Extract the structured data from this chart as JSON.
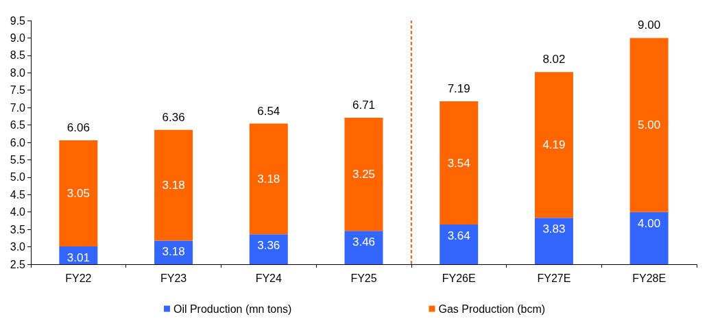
{
  "chart_data": {
    "type": "bar",
    "stacked": true,
    "categories": [
      "FY22",
      "FY23",
      "FY24",
      "FY25",
      "FY26E",
      "FY27E",
      "FY28E"
    ],
    "series": [
      {
        "name": "Oil Production (mn tons)",
        "color": "#3366ff",
        "values": [
          3.01,
          3.18,
          3.36,
          3.46,
          3.64,
          3.83,
          4.0
        ],
        "value_labels": [
          "3.01",
          "3.18",
          "3.36",
          "3.46",
          "3.64",
          "3.83",
          "4.00"
        ]
      },
      {
        "name": "Gas Production (bcm)",
        "color": "#ff6600",
        "values": [
          3.05,
          3.18,
          3.18,
          3.25,
          3.54,
          4.19,
          5.0
        ],
        "value_labels": [
          "3.05",
          "3.18",
          "3.18",
          "3.25",
          "3.54",
          "4.19",
          "5.00"
        ]
      }
    ],
    "totals": [
      "6.06",
      "6.36",
      "6.54",
      "6.71",
      "7.19",
      "8.02",
      "9.00"
    ],
    "ylim": [
      2.5,
      9.5
    ],
    "yticks": [
      2.5,
      {
        "value": 3,
        "label": "3.0"
      },
      3.5,
      {
        "value": 4,
        "label": "4.0"
      },
      4.5,
      {
        "value": 5,
        "label": "5.0"
      },
      5.5,
      {
        "value": 6,
        "label": "6.0"
      },
      6.5,
      {
        "value": 7,
        "label": "7.0"
      },
      7.5,
      {
        "value": 8,
        "label": "8.0"
      },
      8.5,
      {
        "value": 9,
        "label": "9.0"
      },
      9.5
    ],
    "ref_lines": [
      {
        "axis": "x",
        "value": "FY26E",
        "color": "#e8641b",
        "line_style": "dashed"
      }
    ],
    "grid": false,
    "legend": "bottom"
  }
}
